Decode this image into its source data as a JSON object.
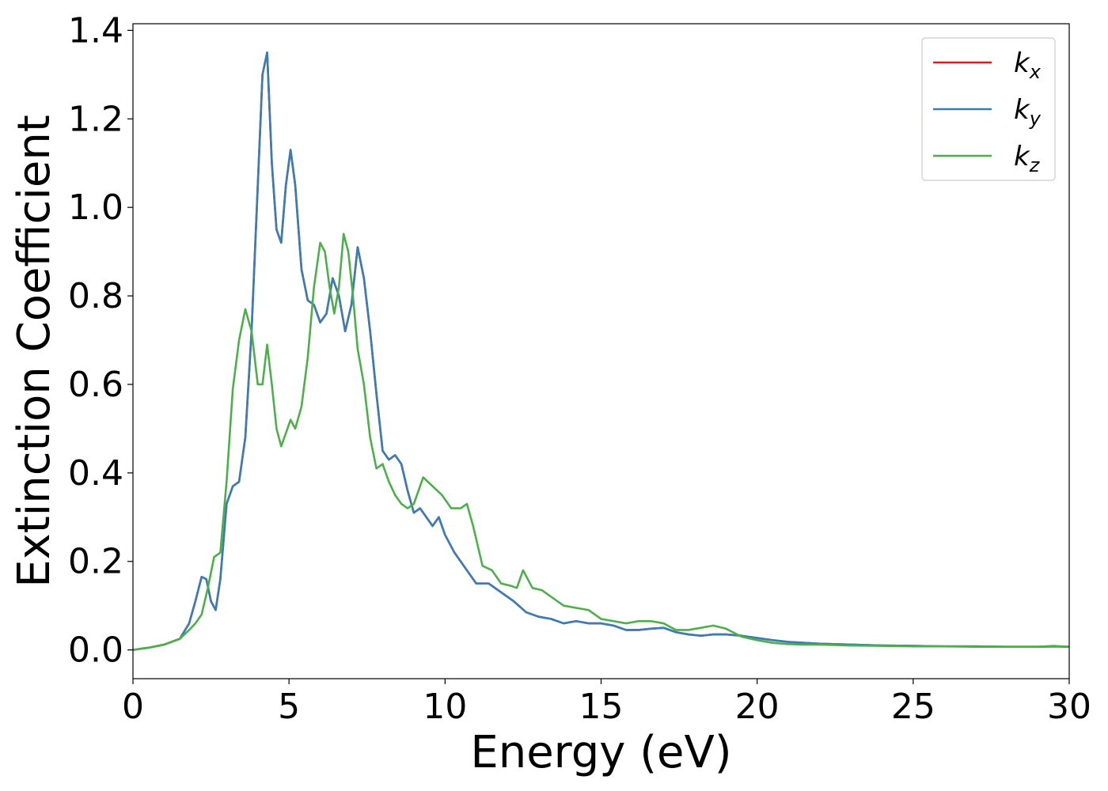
{
  "chart_data": {
    "type": "line",
    "xlabel": "Energy (eV)",
    "ylabel": "Extinction Coefficient",
    "xlim": [
      0,
      30
    ],
    "ylim": [
      -0.065,
      1.415
    ],
    "xticks": [
      "0",
      "5",
      "10",
      "15",
      "20",
      "25",
      "30"
    ],
    "yticks": [
      "0.0",
      "0.2",
      "0.4",
      "0.6",
      "0.8",
      "1.0",
      "1.2",
      "1.4"
    ],
    "grid": false,
    "legend_position": "top-right",
    "series": [
      {
        "name": "k",
        "subscript": "x",
        "color": "#e41a1c",
        "x": [
          0,
          0.5,
          1.0,
          1.5,
          1.8,
          2.0,
          2.2,
          2.35,
          2.5,
          2.65,
          2.8,
          3.0,
          3.2,
          3.4,
          3.6,
          3.8,
          4.0,
          4.15,
          4.3,
          4.45,
          4.6,
          4.75,
          4.9,
          5.05,
          5.2,
          5.4,
          5.6,
          5.8,
          6.0,
          6.2,
          6.4,
          6.6,
          6.8,
          7.0,
          7.2,
          7.4,
          7.6,
          7.8,
          8.0,
          8.2,
          8.4,
          8.6,
          8.8,
          9.0,
          9.2,
          9.4,
          9.6,
          9.8,
          10.0,
          10.3,
          10.6,
          11.0,
          11.4,
          11.8,
          12.2,
          12.6,
          13.0,
          13.4,
          13.8,
          14.2,
          14.6,
          15.0,
          15.4,
          15.8,
          16.2,
          16.6,
          17.0,
          17.4,
          17.8,
          18.2,
          18.6,
          19.0,
          19.5,
          20.0,
          20.5,
          21.0,
          21.5,
          22.0,
          23.0,
          24.0,
          25.0,
          26.0,
          27.0,
          28.0,
          29.0,
          29.5,
          30.0
        ],
        "y": [
          0.0,
          0.005,
          0.012,
          0.025,
          0.06,
          0.11,
          0.165,
          0.16,
          0.11,
          0.09,
          0.16,
          0.33,
          0.37,
          0.38,
          0.48,
          0.72,
          1.05,
          1.3,
          1.35,
          1.1,
          0.95,
          0.92,
          1.05,
          1.13,
          1.05,
          0.86,
          0.79,
          0.78,
          0.74,
          0.76,
          0.84,
          0.8,
          0.72,
          0.78,
          0.91,
          0.84,
          0.72,
          0.58,
          0.45,
          0.43,
          0.44,
          0.42,
          0.36,
          0.31,
          0.32,
          0.3,
          0.28,
          0.3,
          0.26,
          0.22,
          0.19,
          0.15,
          0.15,
          0.13,
          0.11,
          0.085,
          0.075,
          0.07,
          0.06,
          0.065,
          0.06,
          0.06,
          0.055,
          0.045,
          0.045,
          0.048,
          0.05,
          0.04,
          0.035,
          0.032,
          0.035,
          0.035,
          0.032,
          0.027,
          0.022,
          0.018,
          0.016,
          0.014,
          0.012,
          0.01,
          0.009,
          0.008,
          0.008,
          0.007,
          0.007,
          0.008,
          0.007
        ]
      },
      {
        "name": "k",
        "subscript": "y",
        "color": "#377eb8",
        "x": [
          0,
          0.5,
          1.0,
          1.5,
          1.8,
          2.0,
          2.2,
          2.35,
          2.5,
          2.65,
          2.8,
          3.0,
          3.2,
          3.4,
          3.6,
          3.8,
          4.0,
          4.15,
          4.3,
          4.45,
          4.6,
          4.75,
          4.9,
          5.05,
          5.2,
          5.4,
          5.6,
          5.8,
          6.0,
          6.2,
          6.4,
          6.6,
          6.8,
          7.0,
          7.2,
          7.4,
          7.6,
          7.8,
          8.0,
          8.2,
          8.4,
          8.6,
          8.8,
          9.0,
          9.2,
          9.4,
          9.6,
          9.8,
          10.0,
          10.3,
          10.6,
          11.0,
          11.4,
          11.8,
          12.2,
          12.6,
          13.0,
          13.4,
          13.8,
          14.2,
          14.6,
          15.0,
          15.4,
          15.8,
          16.2,
          16.6,
          17.0,
          17.4,
          17.8,
          18.2,
          18.6,
          19.0,
          19.5,
          20.0,
          20.5,
          21.0,
          21.5,
          22.0,
          23.0,
          24.0,
          25.0,
          26.0,
          27.0,
          28.0,
          29.0,
          29.5,
          30.0
        ],
        "y": [
          0.0,
          0.005,
          0.012,
          0.025,
          0.06,
          0.11,
          0.165,
          0.16,
          0.11,
          0.09,
          0.16,
          0.33,
          0.37,
          0.38,
          0.48,
          0.72,
          1.05,
          1.3,
          1.35,
          1.1,
          0.95,
          0.92,
          1.05,
          1.13,
          1.05,
          0.86,
          0.79,
          0.78,
          0.74,
          0.76,
          0.84,
          0.8,
          0.72,
          0.78,
          0.91,
          0.84,
          0.72,
          0.58,
          0.45,
          0.43,
          0.44,
          0.42,
          0.36,
          0.31,
          0.32,
          0.3,
          0.28,
          0.3,
          0.26,
          0.22,
          0.19,
          0.15,
          0.15,
          0.13,
          0.11,
          0.085,
          0.075,
          0.07,
          0.06,
          0.065,
          0.06,
          0.06,
          0.055,
          0.045,
          0.045,
          0.048,
          0.05,
          0.04,
          0.035,
          0.032,
          0.035,
          0.035,
          0.032,
          0.027,
          0.022,
          0.018,
          0.016,
          0.014,
          0.012,
          0.01,
          0.009,
          0.008,
          0.008,
          0.007,
          0.007,
          0.008,
          0.007
        ]
      },
      {
        "name": "k",
        "subscript": "z",
        "color": "#4daf4a",
        "x": [
          0,
          0.5,
          1.0,
          1.5,
          1.8,
          2.0,
          2.2,
          2.4,
          2.6,
          2.8,
          3.0,
          3.2,
          3.4,
          3.6,
          3.8,
          4.0,
          4.15,
          4.3,
          4.45,
          4.6,
          4.75,
          4.9,
          5.05,
          5.2,
          5.4,
          5.6,
          5.8,
          6.0,
          6.15,
          6.3,
          6.45,
          6.6,
          6.75,
          6.9,
          7.05,
          7.2,
          7.4,
          7.6,
          7.8,
          8.0,
          8.2,
          8.4,
          8.6,
          8.8,
          9.0,
          9.3,
          9.6,
          9.9,
          10.2,
          10.5,
          10.7,
          10.9,
          11.2,
          11.5,
          11.8,
          12.1,
          12.3,
          12.5,
          12.8,
          13.1,
          13.4,
          13.8,
          14.2,
          14.6,
          15.0,
          15.4,
          15.8,
          16.2,
          16.6,
          17.0,
          17.4,
          17.8,
          18.2,
          18.6,
          19.0,
          19.5,
          20.0,
          20.5,
          21.0,
          21.5,
          22.0,
          23.0,
          24.0,
          25.0,
          26.0,
          27.0,
          28.0,
          29.0,
          29.5,
          30.0
        ],
        "y": [
          0.0,
          0.005,
          0.012,
          0.025,
          0.045,
          0.06,
          0.08,
          0.14,
          0.21,
          0.22,
          0.38,
          0.59,
          0.7,
          0.77,
          0.72,
          0.6,
          0.6,
          0.69,
          0.6,
          0.5,
          0.46,
          0.49,
          0.52,
          0.5,
          0.55,
          0.66,
          0.82,
          0.92,
          0.9,
          0.82,
          0.76,
          0.82,
          0.94,
          0.9,
          0.8,
          0.68,
          0.6,
          0.48,
          0.41,
          0.42,
          0.38,
          0.35,
          0.33,
          0.32,
          0.33,
          0.39,
          0.37,
          0.35,
          0.32,
          0.32,
          0.33,
          0.28,
          0.19,
          0.18,
          0.15,
          0.145,
          0.14,
          0.18,
          0.14,
          0.135,
          0.12,
          0.1,
          0.095,
          0.09,
          0.07,
          0.065,
          0.06,
          0.065,
          0.065,
          0.06,
          0.045,
          0.045,
          0.05,
          0.055,
          0.048,
          0.03,
          0.022,
          0.016,
          0.013,
          0.012,
          0.012,
          0.01,
          0.009,
          0.008,
          0.008,
          0.007,
          0.007,
          0.007,
          0.009,
          0.007
        ]
      }
    ]
  }
}
